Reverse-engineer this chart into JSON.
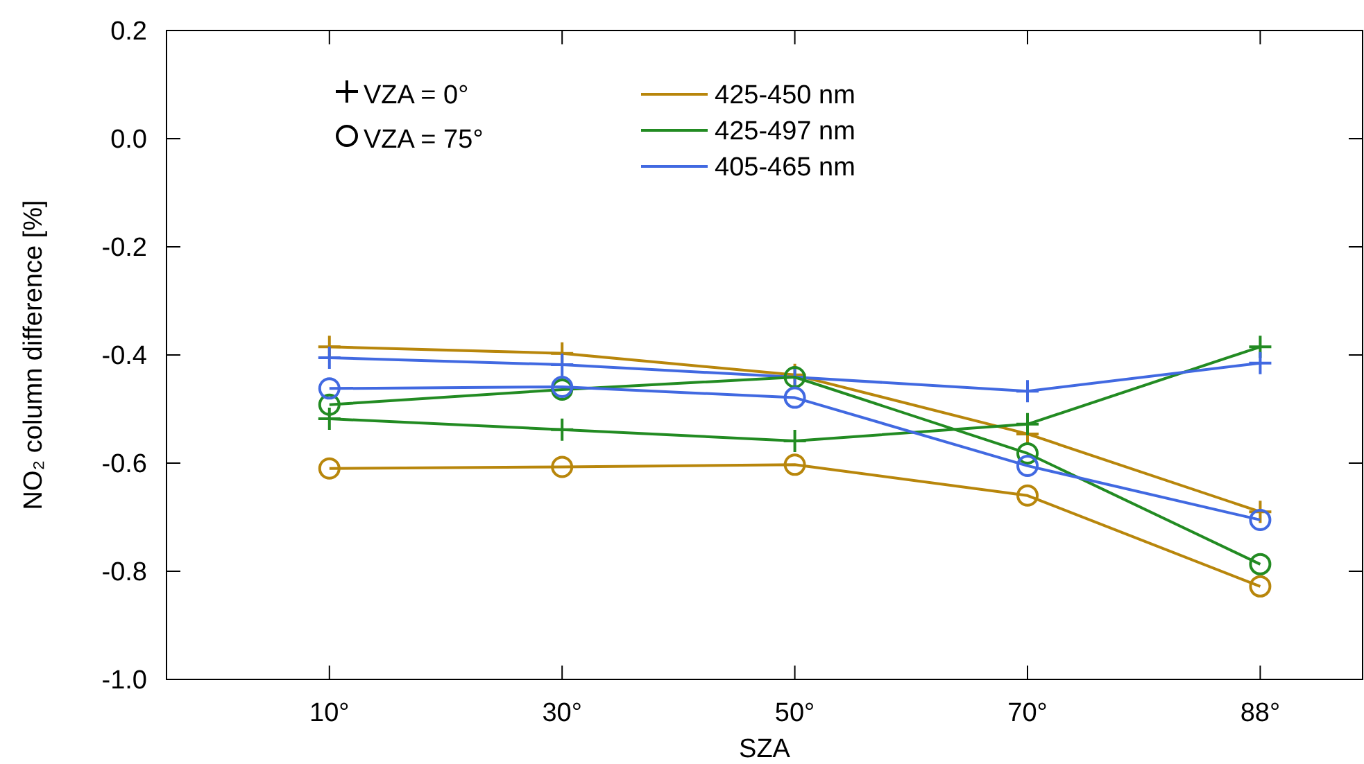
{
  "chart_data": {
    "type": "line",
    "xlabel": "SZA",
    "ylabel": "NO₂ column difference [%]",
    "categories": [
      "10°",
      "30°",
      "50°",
      "70°",
      "88°"
    ],
    "ylim": [
      -1.0,
      0.2
    ],
    "yticks": [
      {
        "value": 0.2,
        "label": "0.2"
      },
      {
        "value": 0,
        "label": "0.0"
      },
      -0.2,
      -0.4,
      -0.6,
      -0.8,
      {
        "value": -1.0,
        "label": "-1.0"
      }
    ],
    "grid": false,
    "legend": "top",
    "line_style": "solid",
    "annotations": [
      "VZA = 0°",
      "VZA = 75°"
    ],
    "series": [
      {
        "name": "425-450 nm",
        "color": "#b8860b",
        "marker": "cross",
        "values": [
          -0.385,
          -0.397,
          -0.437,
          -0.546,
          -0.69
        ]
      },
      {
        "name": "425-497 nm",
        "color": "#228b22",
        "marker": "cross",
        "values": [
          -0.518,
          -0.538,
          -0.559,
          -0.528,
          -0.385
        ]
      },
      {
        "name": "405-465 nm",
        "color": "#4169e1",
        "marker": "cross",
        "values": [
          -0.405,
          -0.418,
          -0.441,
          -0.467,
          -0.415
        ]
      },
      {
        "color": "#b8860b",
        "marker": "circle",
        "values": [
          -0.61,
          -0.607,
          -0.603,
          -0.66,
          -0.828
        ]
      },
      {
        "color": "#228b22",
        "marker": "circle",
        "values": [
          -0.492,
          -0.464,
          -0.441,
          -0.582,
          -0.787
        ]
      },
      {
        "color": "#4169e1",
        "marker": "circle",
        "values": [
          -0.462,
          -0.459,
          -0.479,
          -0.605,
          -0.705
        ]
      }
    ]
  }
}
